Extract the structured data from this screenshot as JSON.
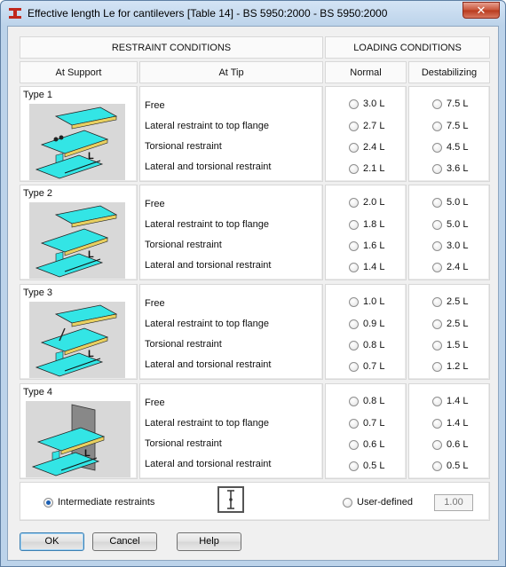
{
  "window": {
    "title": "Effective length Le for cantilevers  [Table 14] - BS 5950:2000 - BS 5950:2000",
    "close_label": "✕",
    "app_icon": "steel-beam-app-icon"
  },
  "headers": {
    "restraint": "RESTRAINT CONDITIONS",
    "loading": "LOADING CONDITIONS",
    "support": "At Support",
    "tip": "At Tip",
    "normal": "Normal",
    "destab": "Destabilizing"
  },
  "types": [
    {
      "label": "Type 1",
      "tips": [
        "Free",
        "Lateral restraint to top flange",
        "Torsional restraint",
        "Lateral and torsional restraint"
      ],
      "normal": [
        "3.0 L",
        "2.7 L",
        "2.4 L",
        "2.1 L"
      ],
      "destab": [
        "7.5 L",
        "7.5 L",
        "4.5 L",
        "3.6 L"
      ]
    },
    {
      "label": "Type 2",
      "tips": [
        "Free",
        "Lateral restraint to top flange",
        "Torsional restraint",
        "Lateral and torsional restraint"
      ],
      "normal": [
        "2.0 L",
        "1.8 L",
        "1.6 L",
        "1.4 L"
      ],
      "destab": [
        "5.0 L",
        "5.0 L",
        "3.0 L",
        "2.4 L"
      ]
    },
    {
      "label": "Type 3",
      "tips": [
        "Free",
        "Lateral restraint to top flange",
        "Torsional restraint",
        "Lateral and torsional restraint"
      ],
      "normal": [
        "1.0 L",
        "0.9 L",
        "0.8 L",
        "0.7 L"
      ],
      "destab": [
        "2.5 L",
        "2.5 L",
        "1.5 L",
        "1.2 L"
      ]
    },
    {
      "label": "Type 4",
      "tips": [
        "Free",
        "Lateral restraint to top flange",
        "Torsional restraint",
        "Lateral and torsional restraint"
      ],
      "normal": [
        "0.8 L",
        "0.7 L",
        "0.6 L",
        "0.5 L"
      ],
      "destab": [
        "1.4 L",
        "1.4 L",
        "0.6 L",
        "0.5 L"
      ]
    }
  ],
  "diagram_dim_label": "L",
  "bottom": {
    "intermediate_label": "Intermediate restraints",
    "intermediate_checked": true,
    "user_defined_label": "User-defined",
    "user_defined_checked": false,
    "user_value": "1.00"
  },
  "buttons": {
    "ok": "OK",
    "cancel": "Cancel",
    "help": "Help"
  },
  "colors": {
    "beam": "#33e5e5",
    "flange_edge": "#e8d060",
    "diagram_bg": "#d8d8d8"
  }
}
